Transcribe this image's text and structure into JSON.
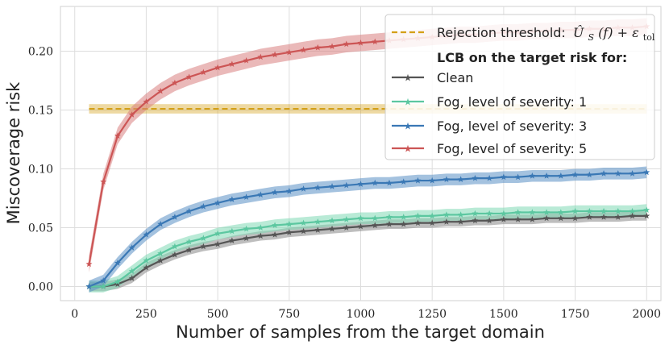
{
  "chart_data": {
    "type": "line",
    "title": "",
    "xlabel": "Number of samples from the target domain",
    "ylabel": "Miscoverage risk",
    "xlim": [
      -50,
      2050
    ],
    "ylim": [
      -0.012,
      0.238
    ],
    "xticks": [
      0,
      250,
      500,
      750,
      1000,
      1250,
      1500,
      1750,
      2000
    ],
    "xtick_labels": [
      "0",
      "250",
      "500",
      "750",
      "1000",
      "1250",
      "1500",
      "1750",
      "2000"
    ],
    "yticks": [
      0.0,
      0.05,
      0.1,
      0.15,
      0.2
    ],
    "ytick_labels": [
      "0.00",
      "0.05",
      "0.10",
      "0.15",
      "0.20"
    ],
    "grid": true,
    "legend_position": "top-right",
    "threshold": {
      "name": "Rejection threshold: Û_S(f) + ε_tol",
      "name_prefix": "Rejection threshold:",
      "name_math": "Û",
      "name_math_sub": "S",
      "name_math_rest": "(f) + ε",
      "name_math_sub2": "tol",
      "value": 0.151,
      "band": [
        0.147,
        0.155
      ],
      "x_range": [
        50,
        2000
      ],
      "color": "#d4a017"
    },
    "legend_header": "LCB on the target risk for:",
    "series": [
      {
        "name": "Clean",
        "color": "#555555",
        "fill": "#888888",
        "x": [
          50,
          100,
          150,
          200,
          250,
          300,
          350,
          400,
          450,
          500,
          550,
          600,
          650,
          700,
          750,
          800,
          850,
          900,
          950,
          1000,
          1050,
          1100,
          1150,
          1200,
          1250,
          1300,
          1350,
          1400,
          1450,
          1500,
          1550,
          1600,
          1650,
          1700,
          1750,
          1800,
          1850,
          1900,
          1950,
          2000
        ],
        "values": [
          0.0,
          0.0,
          0.002,
          0.007,
          0.016,
          0.022,
          0.027,
          0.031,
          0.034,
          0.036,
          0.039,
          0.041,
          0.043,
          0.044,
          0.046,
          0.047,
          0.048,
          0.049,
          0.05,
          0.051,
          0.052,
          0.053,
          0.053,
          0.054,
          0.054,
          0.055,
          0.055,
          0.056,
          0.056,
          0.057,
          0.057,
          0.057,
          0.058,
          0.058,
          0.058,
          0.059,
          0.059,
          0.059,
          0.06,
          0.06
        ],
        "band_width": 0.004
      },
      {
        "name": "Fog, level of severity: 1",
        "color": "#5cc7a0",
        "fill": "#7fd8b5",
        "x": [
          50,
          100,
          150,
          200,
          250,
          300,
          350,
          400,
          450,
          500,
          550,
          600,
          650,
          700,
          750,
          800,
          850,
          900,
          950,
          1000,
          1050,
          1100,
          1150,
          1200,
          1250,
          1300,
          1350,
          1400,
          1450,
          1500,
          1550,
          1600,
          1650,
          1700,
          1750,
          1800,
          1850,
          1900,
          1950,
          2000
        ],
        "values": [
          0.0,
          0.0,
          0.004,
          0.013,
          0.022,
          0.028,
          0.034,
          0.038,
          0.041,
          0.045,
          0.047,
          0.049,
          0.05,
          0.052,
          0.053,
          0.054,
          0.055,
          0.056,
          0.057,
          0.058,
          0.058,
          0.059,
          0.059,
          0.06,
          0.06,
          0.061,
          0.061,
          0.062,
          0.062,
          0.062,
          0.063,
          0.063,
          0.063,
          0.063,
          0.064,
          0.064,
          0.064,
          0.064,
          0.064,
          0.065
        ],
        "band_width": 0.005
      },
      {
        "name": "Fog, level of severity: 3",
        "color": "#3a78b5",
        "fill": "#5a90c5",
        "x": [
          50,
          100,
          150,
          200,
          250,
          300,
          350,
          400,
          450,
          500,
          550,
          600,
          650,
          700,
          750,
          800,
          850,
          900,
          950,
          1000,
          1050,
          1100,
          1150,
          1200,
          1250,
          1300,
          1350,
          1400,
          1450,
          1500,
          1550,
          1600,
          1650,
          1700,
          1750,
          1800,
          1850,
          1900,
          1950,
          2000
        ],
        "values": [
          0.0,
          0.005,
          0.02,
          0.033,
          0.044,
          0.053,
          0.059,
          0.064,
          0.068,
          0.071,
          0.074,
          0.076,
          0.078,
          0.08,
          0.081,
          0.083,
          0.084,
          0.085,
          0.086,
          0.087,
          0.088,
          0.088,
          0.089,
          0.09,
          0.09,
          0.091,
          0.091,
          0.092,
          0.092,
          0.093,
          0.093,
          0.094,
          0.094,
          0.094,
          0.095,
          0.095,
          0.096,
          0.096,
          0.096,
          0.097
        ],
        "band_width": 0.005
      },
      {
        "name": "Fog, level of severity: 5",
        "color": "#cc5555",
        "fill": "#d98080",
        "x": [
          50,
          100,
          150,
          200,
          250,
          300,
          350,
          400,
          450,
          500,
          550,
          600,
          650,
          700,
          750,
          800,
          850,
          900,
          950,
          1000,
          1050,
          1100,
          1150,
          1200,
          1250,
          1300,
          1350,
          1400,
          1450,
          1500,
          1550,
          1600,
          1650,
          1700,
          1750,
          1800,
          1850,
          1900,
          1950,
          2000
        ],
        "values": [
          0.019,
          0.089,
          0.128,
          0.146,
          0.157,
          0.166,
          0.173,
          0.178,
          0.182,
          0.186,
          0.189,
          0.192,
          0.195,
          0.197,
          0.199,
          0.201,
          0.203,
          0.204,
          0.206,
          0.207,
          0.208,
          0.209,
          0.21,
          0.211,
          0.212,
          0.213,
          0.214,
          0.214,
          0.215,
          0.216,
          0.216,
          0.217,
          0.217,
          0.218,
          0.218,
          0.219,
          0.219,
          0.22,
          0.22,
          0.221
        ],
        "band_width": 0.007
      }
    ]
  }
}
